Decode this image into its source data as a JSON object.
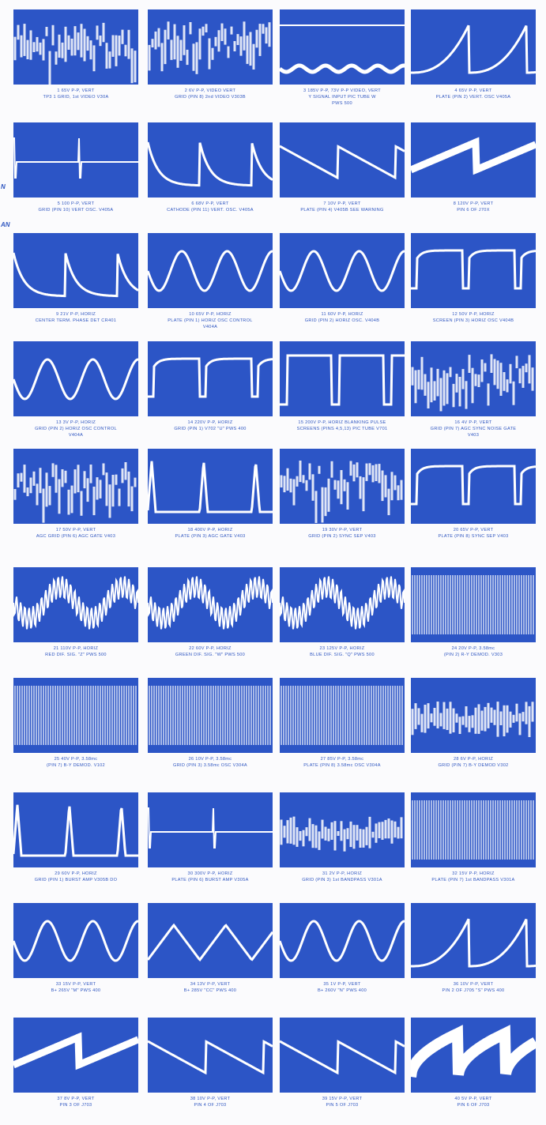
{
  "margin_text": [
    "N",
    "AN"
  ],
  "panels": [
    {
      "caption": [
        "1  65V P-P, VERT",
        "TP3 1 GRID, 1st VIDEO V30A"
      ]
    },
    {
      "caption": [
        "2  6V P-P, VIDEO VERT",
        "GRID (PIN 8) 2nd VIDEO V303B"
      ]
    },
    {
      "caption": [
        "3  185V P-P, 73V P-P VIDEO, VERT",
        "Y SIGNAL INPUT PIC TUBE W",
        "PWS 500"
      ]
    },
    {
      "caption": [
        "4  65V P-P, VERT",
        "PLATE (PIN 2) VERT. OSC V405A"
      ]
    },
    {
      "caption": [
        "5  100 P-P, VERT",
        "GRID (PIN 10) VERT OSC. V405A"
      ]
    },
    {
      "caption": [
        "6  68V P-P, VERT",
        "CATHODE (PIN 11) VERT. OSC. V405A"
      ]
    },
    {
      "caption": [
        "7  10V P-P, VERT",
        "PLATE (PIN 4) V405B  SEE WARNING"
      ]
    },
    {
      "caption": [
        "8  120V P-P, VERT",
        "PIN 6 OF J70X"
      ]
    },
    {
      "caption": [
        "9  21V P-P, HORIZ",
        "CENTER TERM. PHASE DET CR401"
      ]
    },
    {
      "caption": [
        "10  65V P-P, HORIZ",
        "PLATE (PIN 1) HORIZ OSC CONTROL",
        "V404A"
      ]
    },
    {
      "caption": [
        "11  60V P-P, HORIZ",
        "GRID (PIN 2) HORIZ OSC. V404B"
      ]
    },
    {
      "caption": [
        "12  50V P-P, HORIZ",
        "SCREEN (PIN 3) HORIZ OSC V404B"
      ]
    },
    {
      "caption": [
        "13  3V P-P, HORIZ",
        "GRID (PIN 2) HORIZ OSC CONTROL",
        "V404A"
      ]
    },
    {
      "caption": [
        "14  220V P-P, HORIZ",
        "GRID (PIN 1) V702 \"U\" PWS 400"
      ]
    },
    {
      "caption": [
        "15  200V P-P, HORIZ BLANKING PULSE",
        "SCREENS (PINS 4,5,13) PIC TUBE V701"
      ]
    },
    {
      "caption": [
        "16  4V P-P, VERT",
        "GRID (PIN 7) AGC SYNC NOISE GATE",
        "V403"
      ]
    },
    {
      "caption": [
        "17  50V P-P, VERT",
        "AGC GRID (PIN 6) AGC GATE V403"
      ]
    },
    {
      "caption": [
        "18  400V P-P, HORIZ",
        "PLATE (PIN 3) AGC GATE V403"
      ]
    },
    {
      "caption": [
        "19  30V P-P, VERT",
        "GRID (PIN 2) SYNC SEP V403"
      ]
    },
    {
      "caption": [
        "20  65V P-P, VERT",
        "PLATE (PIN 8) SYNC SEP V403"
      ]
    },
    {
      "caption": [
        "21  110V P-P, HORIZ",
        "RED DIF. SIG. \"Z\" PWS 500"
      ]
    },
    {
      "caption": [
        "22  60V P-P, HORIZ",
        "GREEN DIF. SIG. \"W\" PWS 500"
      ]
    },
    {
      "caption": [
        "23  125V P-P, HORIZ",
        "BLUE DIF. SIG. \"Q\" PWS 500"
      ]
    },
    {
      "caption": [
        "24  20V P-P, 3.58mc",
        "(PIN 2) R-Y DEMOD. V303"
      ]
    },
    {
      "caption": [
        "25  40V P-P, 3.58mc",
        "(PIN 7) B-Y DEMOD. V102"
      ]
    },
    {
      "caption": [
        "26  10V P-P, 3.58mc",
        "GRID (PIN 3) 3.58mc OSC V304A"
      ]
    },
    {
      "caption": [
        "27  85V P-P, 3.58mc",
        "PLATE (PIN 8) 3.58mc OSC V304A"
      ]
    },
    {
      "caption": [
        "28  6V P-P, HORIZ",
        "GRID (PIN 7) B-Y DEMOD V302"
      ]
    },
    {
      "caption": [
        "29  60V P-P, HORIZ",
        "GRID (PIN 1) BURST AMP V305B  DO"
      ]
    },
    {
      "caption": [
        "30  300V P-P, HORIZ",
        "PLATE (PIN 6) BURST AMP V305A"
      ]
    },
    {
      "caption": [
        "31  2V P-P, HORIZ",
        "GRID (PIN 3) 1st BANDPASS V301A"
      ]
    },
    {
      "caption": [
        "32  15V P-P, HORIZ",
        "PLATE (PIN 7) 1st BANDPASS V301A"
      ]
    },
    {
      "caption": [
        "33  15V P-P, VERT",
        "B+ 265V \"M\" PWS 400"
      ]
    },
    {
      "caption": [
        "34  13V P-P, VERT",
        "B+ 285V \"CC\" PWS 400"
      ]
    },
    {
      "caption": [
        "35  1V P-P, VERT",
        "B+ 260V \"N\" PWS 400"
      ]
    },
    {
      "caption": [
        "36  10V P-P, VERT",
        "PIN 2 OF J705  \"S\" PWS 400"
      ]
    },
    {
      "caption": [
        "37  8V P-P, VERT",
        "PIN 3 OF J703"
      ]
    },
    {
      "caption": [
        "38  10V P-P, VERT",
        "PIN 4 OF J703"
      ]
    },
    {
      "caption": [
        "39  15V P-P, VERT",
        "PIN 5 OF J703"
      ]
    },
    {
      "caption": [
        "40  5V P-P, VERT",
        "PIN 6 OF J703"
      ]
    }
  ]
}
